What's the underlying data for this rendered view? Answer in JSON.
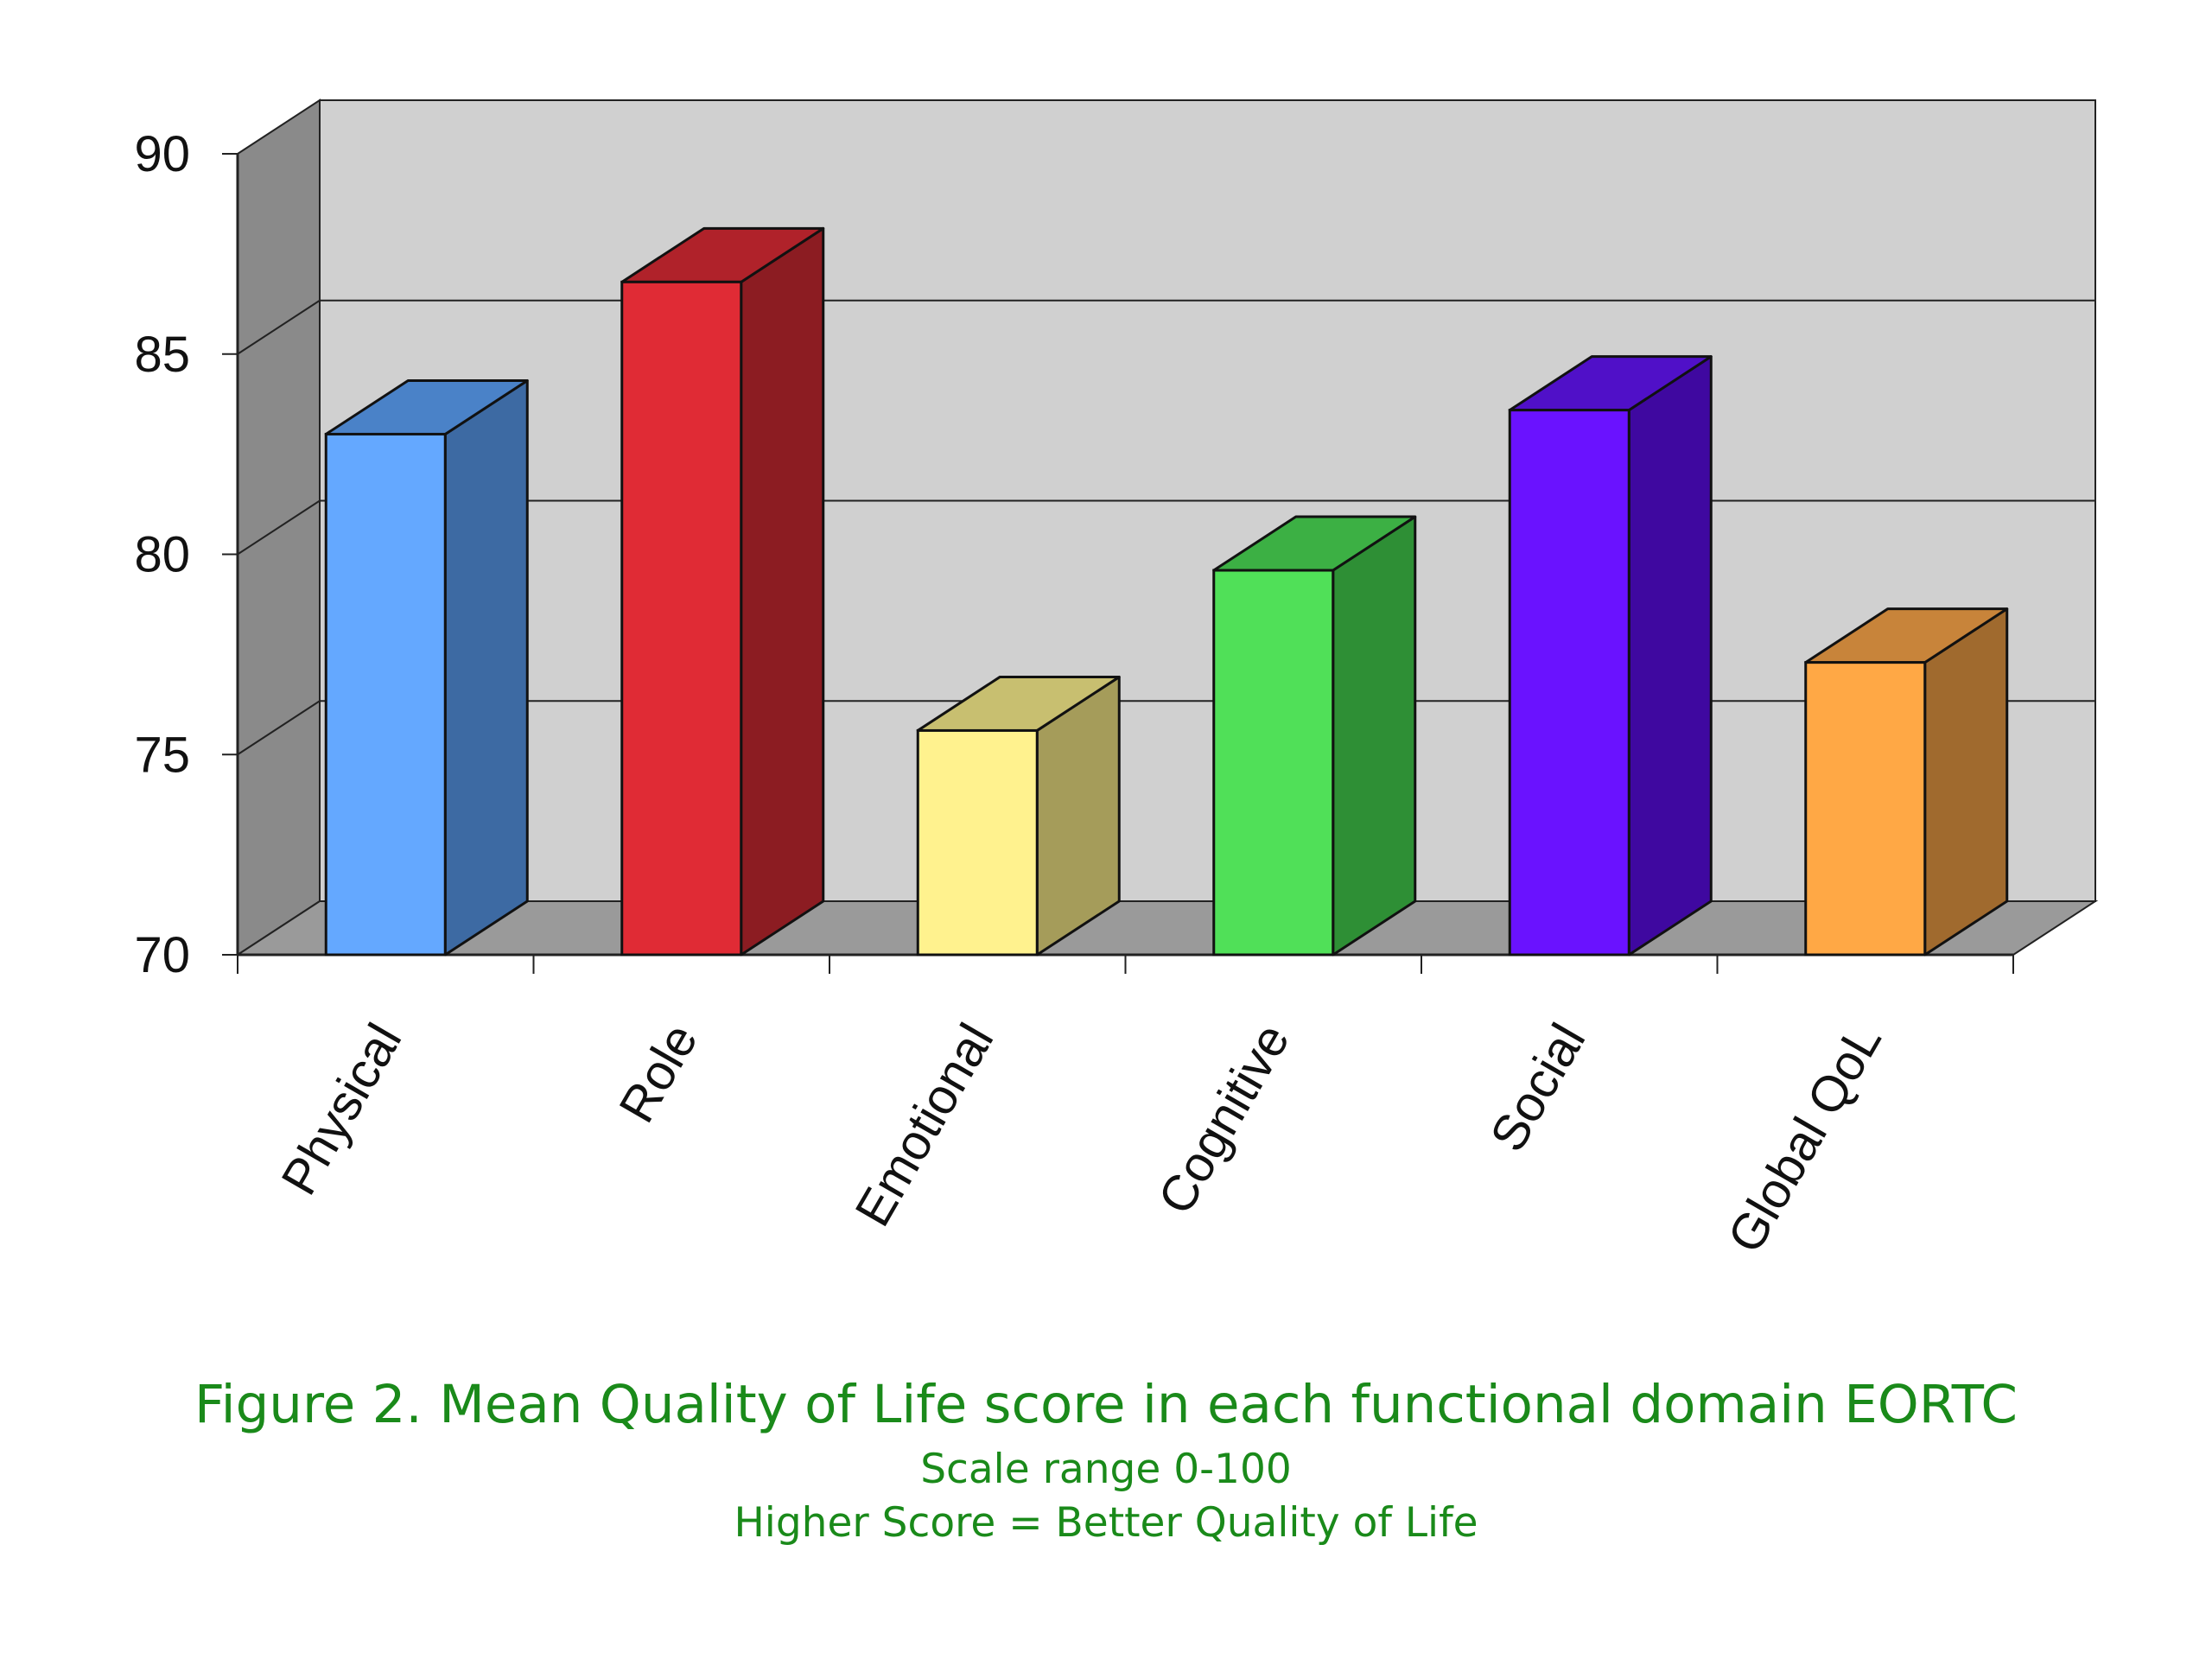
{
  "chart_data": {
    "type": "bar",
    "categories": [
      "Physical",
      "Role",
      "Emotional",
      "Cognitive",
      "Social",
      "Global QoL"
    ],
    "values": [
      83.0,
      86.8,
      75.6,
      79.6,
      83.6,
      77.3
    ],
    "ylim": [
      70,
      90
    ],
    "yticks": [
      "70",
      "75",
      "80",
      "85",
      "90"
    ],
    "grid": true,
    "style": "3d",
    "colors": [
      {
        "front": "#64a8ff",
        "side": "#3d6aa3",
        "top": "#4a82c8"
      },
      {
        "front": "#e02b35",
        "side": "#8c1c22",
        "top": "#b0222a"
      },
      {
        "front": "#fff28e",
        "side": "#a59c5a",
        "top": "#c8bf70"
      },
      {
        "front": "#50e058",
        "side": "#2e8f35",
        "top": "#3cb044"
      },
      {
        "front": "#6a12ff",
        "side": "#3f08a0",
        "top": "#5010c8"
      },
      {
        "front": "#ffa845",
        "side": "#a06a2e",
        "top": "#c8843a"
      }
    ]
  },
  "caption": {
    "title": "Figure 2. Mean Quality of Life score in each functional domain EORTC",
    "line1": "Scale range 0-100",
    "line2": "Higher Score = Better Quality of Life"
  }
}
